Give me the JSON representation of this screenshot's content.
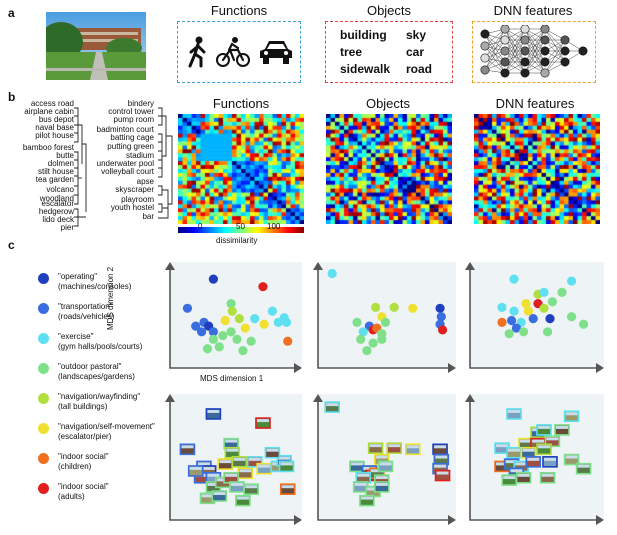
{
  "panel_labels": {
    "a": "a",
    "b": "b",
    "c": "c"
  },
  "panel_a": {
    "headers": {
      "functions": "Functions",
      "objects": "Objects",
      "dnn": "DNN features"
    },
    "object_words": [
      "building",
      "sky",
      "tree",
      "car",
      "sidewalk",
      "road"
    ],
    "box_colors": {
      "functions": "#3aa0d8",
      "objects": "#e04848",
      "dnn": "#f0a030"
    },
    "photo_description_icon": "campus-photo"
  },
  "panel_b": {
    "headers": {
      "functions": "Functions",
      "objects": "Objects",
      "dnn": "DNN features"
    },
    "left_labels": [
      "access road",
      "airplane cabin",
      "bus depot",
      "naval base",
      "pilot house",
      "bamboo forest",
      "butte",
      "dolmen",
      "stilt house",
      "tea garden",
      "volcano",
      "woodland",
      "escalator",
      "hedgerow",
      "lido deck",
      "pier"
    ],
    "right_labels": [
      "bindery",
      "control tower",
      "pump room",
      "badminton court",
      "batting cage",
      "putting green",
      "stadium",
      "underwater pool",
      "volleyball court",
      "apse",
      "skyscraper",
      "playroom",
      "youth hostel",
      "bar"
    ],
    "colorbar": {
      "ticks": [
        "0",
        "50",
        "100"
      ],
      "label": "dissimilarity"
    }
  },
  "panel_c": {
    "legend": [
      {
        "line1": "\"operating\"",
        "line2": "(machines/consoles)",
        "color": "#1f3fbf"
      },
      {
        "line1": "\"transportation\"",
        "line2": "(roads/vehicles)",
        "color": "#3a6ee0"
      },
      {
        "line1": "\"exercise\"",
        "line2": "(gym halls/pools/courts)",
        "color": "#5fe0f0"
      },
      {
        "line1": "\"outdoor pastoral\"",
        "line2": "(landscapes/gardens)",
        "color": "#7ee08a"
      },
      {
        "line1": "\"navigation/wayfinding\"",
        "line2": "(tall buildings)",
        "color": "#b0e040"
      },
      {
        "line1": "\"navigation/self-movement\"",
        "line2": "(escalator/pier)",
        "color": "#f0e030"
      },
      {
        "line1": "\"indoor social\"",
        "line2": "(children)",
        "color": "#f07020"
      },
      {
        "line1": "\"indoor social\"",
        "line2": "(adults)",
        "color": "#e02020"
      }
    ],
    "ylabel": "MDS dimension 2",
    "xlabel": "MDS dimension 1"
  },
  "chart_data": [
    {
      "type": "scatter",
      "title": "Functions MDS",
      "xlabel": "MDS dimension 1",
      "ylabel": "MDS dimension 2",
      "points": [
        {
          "x": 0.3,
          "y": 0.86,
          "c": 0
        },
        {
          "x": 0.72,
          "y": 0.78,
          "c": 7
        },
        {
          "x": 0.08,
          "y": 0.55,
          "c": 1
        },
        {
          "x": 0.22,
          "y": 0.4,
          "c": 1
        },
        {
          "x": 0.26,
          "y": 0.36,
          "c": 0
        },
        {
          "x": 0.2,
          "y": 0.3,
          "c": 1
        },
        {
          "x": 0.3,
          "y": 0.3,
          "c": 1
        },
        {
          "x": 0.15,
          "y": 0.36,
          "c": 1
        },
        {
          "x": 0.45,
          "y": 0.6,
          "c": 3
        },
        {
          "x": 0.46,
          "y": 0.52,
          "c": 4
        },
        {
          "x": 0.4,
          "y": 0.42,
          "c": 5
        },
        {
          "x": 0.52,
          "y": 0.44,
          "c": 4
        },
        {
          "x": 0.57,
          "y": 0.34,
          "c": 5
        },
        {
          "x": 0.65,
          "y": 0.44,
          "c": 2
        },
        {
          "x": 0.73,
          "y": 0.38,
          "c": 5
        },
        {
          "x": 0.85,
          "y": 0.4,
          "c": 2
        },
        {
          "x": 0.9,
          "y": 0.45,
          "c": 2
        },
        {
          "x": 0.92,
          "y": 0.4,
          "c": 2
        },
        {
          "x": 0.8,
          "y": 0.52,
          "c": 2
        },
        {
          "x": 0.3,
          "y": 0.22,
          "c": 3
        },
        {
          "x": 0.38,
          "y": 0.26,
          "c": 3
        },
        {
          "x": 0.45,
          "y": 0.3,
          "c": 3
        },
        {
          "x": 0.5,
          "y": 0.22,
          "c": 3
        },
        {
          "x": 0.25,
          "y": 0.12,
          "c": 3
        },
        {
          "x": 0.35,
          "y": 0.14,
          "c": 3
        },
        {
          "x": 0.55,
          "y": 0.1,
          "c": 3
        },
        {
          "x": 0.93,
          "y": 0.2,
          "c": 6
        },
        {
          "x": 0.62,
          "y": 0.2,
          "c": 3
        }
      ]
    },
    {
      "type": "scatter",
      "title": "Objects MDS",
      "points": [
        {
          "x": 0.05,
          "y": 0.92,
          "c": 2
        },
        {
          "x": 0.4,
          "y": 0.56,
          "c": 4
        },
        {
          "x": 0.55,
          "y": 0.56,
          "c": 4
        },
        {
          "x": 0.7,
          "y": 0.55,
          "c": 5
        },
        {
          "x": 0.45,
          "y": 0.46,
          "c": 5
        },
        {
          "x": 0.25,
          "y": 0.4,
          "c": 3
        },
        {
          "x": 0.35,
          "y": 0.36,
          "c": 1
        },
        {
          "x": 0.38,
          "y": 0.32,
          "c": 7
        },
        {
          "x": 0.41,
          "y": 0.34,
          "c": 6
        },
        {
          "x": 0.3,
          "y": 0.3,
          "c": 2
        },
        {
          "x": 0.45,
          "y": 0.28,
          "c": 3
        },
        {
          "x": 0.28,
          "y": 0.22,
          "c": 3
        },
        {
          "x": 0.38,
          "y": 0.18,
          "c": 3
        },
        {
          "x": 0.45,
          "y": 0.22,
          "c": 3
        },
        {
          "x": 0.33,
          "y": 0.1,
          "c": 3
        },
        {
          "x": 0.92,
          "y": 0.55,
          "c": 0
        },
        {
          "x": 0.93,
          "y": 0.46,
          "c": 1
        },
        {
          "x": 0.92,
          "y": 0.38,
          "c": 1
        },
        {
          "x": 0.94,
          "y": 0.32,
          "c": 7
        },
        {
          "x": 0.48,
          "y": 0.4,
          "c": 3
        }
      ]
    },
    {
      "type": "scatter",
      "title": "DNN features MDS",
      "points": [
        {
          "x": 0.3,
          "y": 0.86,
          "c": 2
        },
        {
          "x": 0.78,
          "y": 0.84,
          "c": 2
        },
        {
          "x": 0.5,
          "y": 0.7,
          "c": 4
        },
        {
          "x": 0.55,
          "y": 0.72,
          "c": 2
        },
        {
          "x": 0.7,
          "y": 0.72,
          "c": 3
        },
        {
          "x": 0.4,
          "y": 0.6,
          "c": 5
        },
        {
          "x": 0.5,
          "y": 0.6,
          "c": 7
        },
        {
          "x": 0.62,
          "y": 0.62,
          "c": 3
        },
        {
          "x": 0.2,
          "y": 0.56,
          "c": 2
        },
        {
          "x": 0.3,
          "y": 0.52,
          "c": 2
        },
        {
          "x": 0.42,
          "y": 0.52,
          "c": 5
        },
        {
          "x": 0.55,
          "y": 0.55,
          "c": 4
        },
        {
          "x": 0.2,
          "y": 0.4,
          "c": 6
        },
        {
          "x": 0.28,
          "y": 0.42,
          "c": 1
        },
        {
          "x": 0.36,
          "y": 0.4,
          "c": 2
        },
        {
          "x": 0.46,
          "y": 0.44,
          "c": 1
        },
        {
          "x": 0.6,
          "y": 0.44,
          "c": 0
        },
        {
          "x": 0.78,
          "y": 0.46,
          "c": 3
        },
        {
          "x": 0.32,
          "y": 0.34,
          "c": 1
        },
        {
          "x": 0.26,
          "y": 0.28,
          "c": 3
        },
        {
          "x": 0.38,
          "y": 0.3,
          "c": 3
        },
        {
          "x": 0.88,
          "y": 0.38,
          "c": 3
        },
        {
          "x": 0.58,
          "y": 0.3,
          "c": 3
        }
      ]
    }
  ]
}
